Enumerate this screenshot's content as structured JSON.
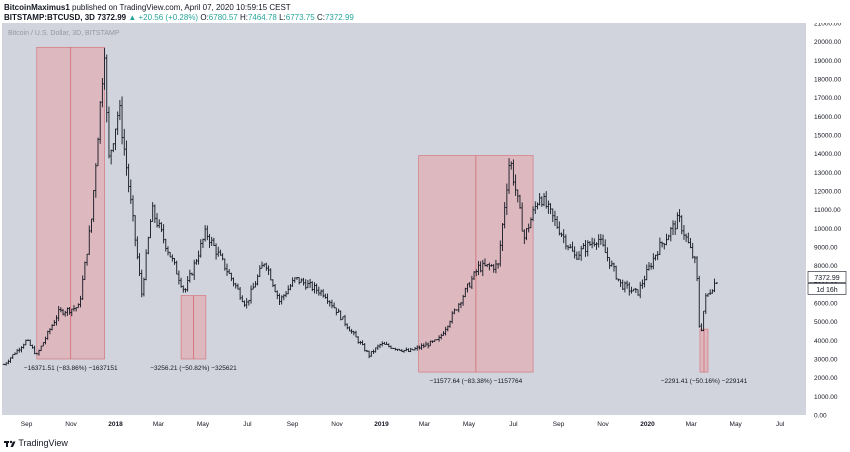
{
  "header": {
    "author": "BitcoinMaximus1",
    "published_text": "published on TradingView.com, April 07, 2020 10:59:15 CEST",
    "symbol": "BITSTAMP:BTCUSD, 3D",
    "last": "7372.99",
    "change": "▲ +20.56 (+0.28%)",
    "o_label": "O:",
    "o": "6780.57",
    "h_label": "H:",
    "h": "7464.78",
    "l_label": "L:",
    "l": "6773.75",
    "c_label": "C:",
    "c": "7372.99"
  },
  "footer": {
    "brand": "TradingView"
  },
  "chart_data": {
    "type": "ohlc",
    "watermark": "Bitcoin / U.S. Dollar, 3D, BITSTAMP",
    "y_ticks": [
      "21000.00",
      "20000.00",
      "19000.00",
      "18000.00",
      "17000.00",
      "16000.00",
      "15000.00",
      "14000.00",
      "13000.00",
      "12000.00",
      "11000.00",
      "10000.00",
      "9000.00",
      "8000.00",
      "7000.00",
      "6000.00",
      "5000.00",
      "4000.00",
      "3000.00",
      "2000.00",
      "1000.00",
      "0.00"
    ],
    "x_ticks": [
      "Sep",
      "Nov",
      "2018",
      "Mar",
      "May",
      "Jul",
      "Sep",
      "Nov",
      "2019",
      "Mar",
      "May",
      "Jul",
      "Sep",
      "Nov",
      "2020",
      "Mar",
      "May",
      "Jul"
    ],
    "price_label": "7372.99",
    "countdown_label": "1d 16h",
    "ylim": [
      0,
      21000
    ],
    "key_prices": [
      {
        "date": "2017-08-01",
        "price": 2700
      },
      {
        "date": "2017-09-01",
        "price": 4000
      },
      {
        "date": "2017-09-15",
        "price": 3200
      },
      {
        "date": "2017-10-15",
        "price": 5500
      },
      {
        "date": "2017-11-12",
        "price": 5800
      },
      {
        "date": "2017-11-29",
        "price": 10500
      },
      {
        "date": "2017-12-17",
        "price": 19700
      },
      {
        "date": "2017-12-22",
        "price": 13500
      },
      {
        "date": "2018-01-06",
        "price": 16500
      },
      {
        "date": "2018-02-06",
        "price": 6500
      },
      {
        "date": "2018-02-20",
        "price": 11000
      },
      {
        "date": "2018-04-06",
        "price": 6600
      },
      {
        "date": "2018-05-05",
        "price": 9800
      },
      {
        "date": "2018-06-29",
        "price": 5900
      },
      {
        "date": "2018-07-25",
        "price": 8300
      },
      {
        "date": "2018-08-14",
        "price": 6100
      },
      {
        "date": "2018-09-05",
        "price": 7300
      },
      {
        "date": "2018-10-15",
        "price": 6500
      },
      {
        "date": "2018-11-20",
        "price": 4500
      },
      {
        "date": "2018-12-15",
        "price": 3200
      },
      {
        "date": "2018-12-31",
        "price": 3800
      },
      {
        "date": "2019-02-07",
        "price": 3400
      },
      {
        "date": "2019-03-20",
        "price": 4000
      },
      {
        "date": "2019-04-02",
        "price": 4900
      },
      {
        "date": "2019-05-14",
        "price": 7900
      },
      {
        "date": "2019-06-10",
        "price": 8000
      },
      {
        "date": "2019-06-26",
        "price": 13800
      },
      {
        "date": "2019-07-16",
        "price": 9500
      },
      {
        "date": "2019-08-06",
        "price": 11800
      },
      {
        "date": "2019-09-23",
        "price": 8500
      },
      {
        "date": "2019-10-25",
        "price": 9500
      },
      {
        "date": "2019-11-25",
        "price": 7000
      },
      {
        "date": "2019-12-18",
        "price": 6500
      },
      {
        "date": "2020-01-14",
        "price": 8800
      },
      {
        "date": "2020-02-13",
        "price": 10500
      },
      {
        "date": "2020-03-08",
        "price": 8000
      },
      {
        "date": "2020-03-13",
        "price": 4000
      },
      {
        "date": "2020-03-20",
        "price": 6200
      },
      {
        "date": "2020-04-07",
        "price": 7373
      }
    ],
    "ranges": [
      {
        "from_date": "2017-09-15",
        "to_date": "2017-12-17",
        "low": 3000,
        "high": 19700,
        "label": "−16371.51 (−83.86%) −1637151"
      },
      {
        "from_date": "2018-04-01",
        "to_date": "2018-05-05",
        "low": 3000,
        "high": 6400,
        "label": "−3256.21 (−50.82%) −325621"
      },
      {
        "from_date": "2019-02-21",
        "to_date": "2019-07-28",
        "low": 2300,
        "high": 13900,
        "label": "−11577.64 (−83.38%) −1157764"
      },
      {
        "from_date": "2020-03-13",
        "to_date": "2020-03-24",
        "low": 2300,
        "high": 4600,
        "label": "−2291.41 (−50.16%) −229141"
      }
    ]
  },
  "colors": {
    "plot_bg": "#d1d4dc",
    "bars": "#131722",
    "range_fill": "#e8a3a8",
    "range_line": "#d46a74",
    "accent": "#26a69a"
  }
}
